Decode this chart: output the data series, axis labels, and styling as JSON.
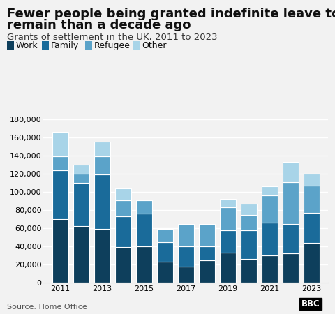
{
  "title_line1": "Fewer people being granted indefinite leave to",
  "title_line2": "remain than a decade ago",
  "subtitle": "Grants of settlement in the UK, 2011 to 2023",
  "source": "Source: Home Office",
  "years": [
    2011,
    2012,
    2013,
    2014,
    2015,
    2016,
    2017,
    2018,
    2019,
    2020,
    2021,
    2022,
    2023
  ],
  "work": [
    70000,
    62000,
    59000,
    39000,
    40000,
    23000,
    18000,
    25000,
    33000,
    26000,
    30000,
    32000,
    44000
  ],
  "family": [
    54000,
    48000,
    60000,
    34000,
    36000,
    22000,
    22000,
    15000,
    25000,
    32000,
    36000,
    33000,
    33000
  ],
  "refugee": [
    15000,
    10000,
    20000,
    18000,
    15000,
    14000,
    25000,
    25000,
    25000,
    17000,
    30000,
    46000,
    30000
  ],
  "other": [
    27000,
    10000,
    16000,
    13000,
    0,
    0,
    0,
    0,
    9000,
    12000,
    10000,
    22000,
    13000
  ],
  "colors": {
    "work": "#0e3f5c",
    "family": "#1a6b9a",
    "refugee": "#5ba3c9",
    "other": "#a8d4e8"
  },
  "ylim": [
    0,
    180000
  ],
  "yticks": [
    0,
    20000,
    40000,
    60000,
    80000,
    100000,
    120000,
    140000,
    160000,
    180000
  ],
  "background_color": "#f2f2f2",
  "bar_edge_color": "white",
  "title_fontsize": 13,
  "subtitle_fontsize": 9.5,
  "legend_fontsize": 9,
  "tick_fontsize": 8,
  "source_fontsize": 8
}
